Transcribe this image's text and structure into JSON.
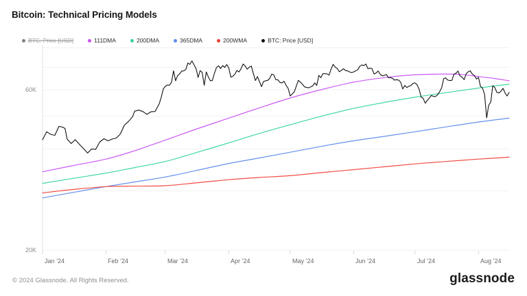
{
  "title": "Bitcoin: Technical Pricing Models",
  "legend": [
    {
      "label": "BTC: Price [USD]",
      "color": "#808080",
      "disabled": true
    },
    {
      "label": "111DMA",
      "color": "#cb4ff0",
      "disabled": false
    },
    {
      "label": "200DMA",
      "color": "#36d39e",
      "disabled": false
    },
    {
      "label": "365DMA",
      "color": "#5b8def",
      "disabled": false
    },
    {
      "label": "200WMA",
      "color": "#ef3b30",
      "disabled": false
    },
    {
      "label": "BTC: Price [USD]",
      "color": "#111111",
      "disabled": false
    }
  ],
  "footer": {
    "copyright": "© 2024 Glassnode. All Rights Reserved.",
    "logo": "glassnode"
  },
  "chart_data": {
    "type": "line",
    "title": "Bitcoin: Technical Pricing Models",
    "y_scale": "log",
    "x_unit": "days_since_2024-01-01",
    "ylim": [
      20000,
      82000
    ],
    "grid_values": [
      20000,
      30000,
      40000,
      50000,
      60000,
      70000,
      80000
    ],
    "y_ticks": [
      {
        "label": "60K",
        "value": 60000
      },
      {
        "label": "20K",
        "value": 20000
      }
    ],
    "x_ticks": [
      {
        "label": "Jan ’24",
        "day": 0
      },
      {
        "label": "Feb ’24",
        "day": 31
      },
      {
        "label": "Mar ’24",
        "day": 60
      },
      {
        "label": "Apr ’24",
        "day": 91
      },
      {
        "label": "May ’24",
        "day": 121
      },
      {
        "label": "Jun ’24",
        "day": 152
      },
      {
        "label": "Jul ’24",
        "day": 182
      },
      {
        "label": "Aug ’24",
        "day": 213
      }
    ],
    "series": [
      {
        "name": "111DMA",
        "color": "#cb5af5",
        "smooth": true,
        "points": [
          [
            0,
            34200
          ],
          [
            15,
            35700
          ],
          [
            31,
            37300
          ],
          [
            45,
            39500
          ],
          [
            60,
            42500
          ],
          [
            75,
            45800
          ],
          [
            91,
            49400
          ],
          [
            106,
            53000
          ],
          [
            121,
            56700
          ],
          [
            136,
            60000
          ],
          [
            152,
            63200
          ],
          [
            167,
            65200
          ],
          [
            182,
            66500
          ],
          [
            197,
            66800
          ],
          [
            205,
            66600
          ],
          [
            213,
            65700
          ],
          [
            221,
            64800
          ],
          [
            228,
            63800
          ]
        ]
      },
      {
        "name": "200DMA",
        "color": "#3fd6a4",
        "smooth": true,
        "points": [
          [
            0,
            31600
          ],
          [
            15,
            32700
          ],
          [
            31,
            33900
          ],
          [
            45,
            35200
          ],
          [
            60,
            36700
          ],
          [
            75,
            39000
          ],
          [
            91,
            41700
          ],
          [
            106,
            44500
          ],
          [
            121,
            47200
          ],
          [
            136,
            50000
          ],
          [
            152,
            52800
          ],
          [
            167,
            55000
          ],
          [
            182,
            57000
          ],
          [
            197,
            58800
          ],
          [
            213,
            60700
          ],
          [
            221,
            61600
          ],
          [
            228,
            62300
          ]
        ]
      },
      {
        "name": "365DMA",
        "color": "#6490ec",
        "smooth": true,
        "points": [
          [
            0,
            28600
          ],
          [
            15,
            29700
          ],
          [
            31,
            30900
          ],
          [
            45,
            31900
          ],
          [
            60,
            33000
          ],
          [
            75,
            34500
          ],
          [
            91,
            36200
          ],
          [
            106,
            37600
          ],
          [
            121,
            39100
          ],
          [
            136,
            40700
          ],
          [
            152,
            42300
          ],
          [
            167,
            43600
          ],
          [
            182,
            45000
          ],
          [
            197,
            46500
          ],
          [
            213,
            48100
          ],
          [
            228,
            49400
          ]
        ]
      },
      {
        "name": "200WMA",
        "color": "#f24b42",
        "smooth": true,
        "points": [
          [
            0,
            29600
          ],
          [
            15,
            30300
          ],
          [
            31,
            30900
          ],
          [
            45,
            31000
          ],
          [
            60,
            31100
          ],
          [
            75,
            31700
          ],
          [
            91,
            32400
          ],
          [
            106,
            32900
          ],
          [
            121,
            33300
          ],
          [
            136,
            34000
          ],
          [
            152,
            34700
          ],
          [
            167,
            35400
          ],
          [
            182,
            36100
          ],
          [
            197,
            36700
          ],
          [
            213,
            37300
          ],
          [
            228,
            37800
          ]
        ]
      },
      {
        "name": "BTC: Price [USD]",
        "color": "#111111",
        "smooth": false,
        "points": [
          [
            0,
            42600
          ],
          [
            2,
            45000
          ],
          [
            4,
            44200
          ],
          [
            6,
            43900
          ],
          [
            8,
            46700
          ],
          [
            10,
            46400
          ],
          [
            11,
            46000
          ],
          [
            12,
            42800
          ],
          [
            14,
            41500
          ],
          [
            16,
            42600
          ],
          [
            18,
            41300
          ],
          [
            20,
            40100
          ],
          [
            22,
            38900
          ],
          [
            24,
            40000
          ],
          [
            26,
            39900
          ],
          [
            28,
            42000
          ],
          [
            30,
            42900
          ],
          [
            32,
            42300
          ],
          [
            34,
            42800
          ],
          [
            36,
            43100
          ],
          [
            38,
            44300
          ],
          [
            40,
            47100
          ],
          [
            42,
            48300
          ],
          [
            44,
            49900
          ],
          [
            45,
            51800
          ],
          [
            47,
            52200
          ],
          [
            49,
            51700
          ],
          [
            51,
            50700
          ],
          [
            53,
            51600
          ],
          [
            55,
            51700
          ],
          [
            57,
            54500
          ],
          [
            58,
            57000
          ],
          [
            59,
            60400
          ],
          [
            60,
            61400
          ],
          [
            61,
            62000
          ],
          [
            62,
            61900
          ],
          [
            63,
            63100
          ],
          [
            64,
            68300
          ],
          [
            65,
            63800
          ],
          [
            66,
            66100
          ],
          [
            67,
            66900
          ],
          [
            68,
            68200
          ],
          [
            69,
            68300
          ],
          [
            70,
            69000
          ],
          [
            71,
            72100
          ],
          [
            72,
            71400
          ],
          [
            73,
            73100
          ],
          [
            74,
            71200
          ],
          [
            75,
            69400
          ],
          [
            76,
            65300
          ],
          [
            77,
            68400
          ],
          [
            78,
            67600
          ],
          [
            79,
            61900
          ],
          [
            80,
            67800
          ],
          [
            81,
            65500
          ],
          [
            82,
            63800
          ],
          [
            83,
            64000
          ],
          [
            84,
            67200
          ],
          [
            85,
            69900
          ],
          [
            86,
            70700
          ],
          [
            87,
            69400
          ],
          [
            88,
            70800
          ],
          [
            89,
            69900
          ],
          [
            90,
            71300
          ],
          [
            91,
            69700
          ],
          [
            92,
            65400
          ],
          [
            93,
            65800
          ],
          [
            94,
            66800
          ],
          [
            95,
            68500
          ],
          [
            96,
            67800
          ],
          [
            97,
            69300
          ],
          [
            98,
            71600
          ],
          [
            99,
            70600
          ],
          [
            100,
            69100
          ],
          [
            101,
            70000
          ],
          [
            102,
            70600
          ],
          [
            103,
            67100
          ],
          [
            104,
            63900
          ],
          [
            105,
            65700
          ],
          [
            106,
            63500
          ],
          [
            107,
            61300
          ],
          [
            108,
            63500
          ],
          [
            109,
            63800
          ],
          [
            110,
            64000
          ],
          [
            111,
            64900
          ],
          [
            112,
            66800
          ],
          [
            113,
            66400
          ],
          [
            114,
            64300
          ],
          [
            115,
            64200
          ],
          [
            116,
            63100
          ],
          [
            117,
            62900
          ],
          [
            118,
            63600
          ],
          [
            119,
            61900
          ],
          [
            120,
            60600
          ],
          [
            121,
            57500
          ],
          [
            122,
            58300
          ],
          [
            123,
            59100
          ],
          [
            125,
            64000
          ],
          [
            126,
            63200
          ],
          [
            127,
            62300
          ],
          [
            128,
            61200
          ],
          [
            130,
            60800
          ],
          [
            132,
            61600
          ],
          [
            133,
            62900
          ],
          [
            134,
            61800
          ],
          [
            135,
            66200
          ],
          [
            136,
            65200
          ],
          [
            137,
            67000
          ],
          [
            139,
            66900
          ],
          [
            140,
            66300
          ],
          [
            141,
            69100
          ],
          [
            142,
            71400
          ],
          [
            143,
            70100
          ],
          [
            144,
            69400
          ],
          [
            145,
            67900
          ],
          [
            146,
            68500
          ],
          [
            147,
            69300
          ],
          [
            148,
            68500
          ],
          [
            149,
            68300
          ],
          [
            150,
            67800
          ],
          [
            151,
            67500
          ],
          [
            152,
            67800
          ],
          [
            154,
            68800
          ],
          [
            155,
            70500
          ],
          [
            156,
            71100
          ],
          [
            157,
            70800
          ],
          [
            158,
            71600
          ],
          [
            159,
            69300
          ],
          [
            160,
            69600
          ],
          [
            161,
            69300
          ],
          [
            162,
            66800
          ],
          [
            163,
            67300
          ],
          [
            164,
            68200
          ],
          [
            165,
            66700
          ],
          [
            166,
            66000
          ],
          [
            167,
            66200
          ],
          [
            168,
            66600
          ],
          [
            169,
            65200
          ],
          [
            170,
            65200
          ],
          [
            171,
            64900
          ],
          [
            172,
            64100
          ],
          [
            173,
            64300
          ],
          [
            174,
            64100
          ],
          [
            175,
            63200
          ],
          [
            176,
            60300
          ],
          [
            177,
            61800
          ],
          [
            178,
            60900
          ],
          [
            179,
            61500
          ],
          [
            180,
            61700
          ],
          [
            181,
            62700
          ],
          [
            182,
            62900
          ],
          [
            183,
            62100
          ],
          [
            184,
            60200
          ],
          [
            185,
            57000
          ],
          [
            186,
            56600
          ],
          [
            187,
            54700
          ],
          [
            188,
            55800
          ],
          [
            189,
            56700
          ],
          [
            190,
            57700
          ],
          [
            191,
            57300
          ],
          [
            192,
            57300
          ],
          [
            193,
            57900
          ],
          [
            194,
            59200
          ],
          [
            195,
            60800
          ],
          [
            196,
            64700
          ],
          [
            197,
            65100
          ],
          [
            198,
            64100
          ],
          [
            199,
            63900
          ],
          [
            200,
            64000
          ],
          [
            201,
            66700
          ],
          [
            202,
            67200
          ],
          [
            203,
            68200
          ],
          [
            204,
            66000
          ],
          [
            205,
            65400
          ],
          [
            206,
            64300
          ],
          [
            207,
            67000
          ],
          [
            208,
            67900
          ],
          [
            209,
            68300
          ],
          [
            210,
            66800
          ],
          [
            211,
            66200
          ],
          [
            212,
            64600
          ],
          [
            213,
            65300
          ],
          [
            214,
            61400
          ],
          [
            215,
            60700
          ],
          [
            216,
            58100
          ],
          [
            217,
            49500
          ],
          [
            218,
            54000
          ],
          [
            219,
            55100
          ],
          [
            220,
            61700
          ],
          [
            221,
            60900
          ],
          [
            222,
            58900
          ],
          [
            223,
            58700
          ],
          [
            224,
            59400
          ],
          [
            225,
            60600
          ],
          [
            226,
            58700
          ],
          [
            227,
            57500
          ],
          [
            228,
            58900
          ]
        ]
      }
    ]
  }
}
